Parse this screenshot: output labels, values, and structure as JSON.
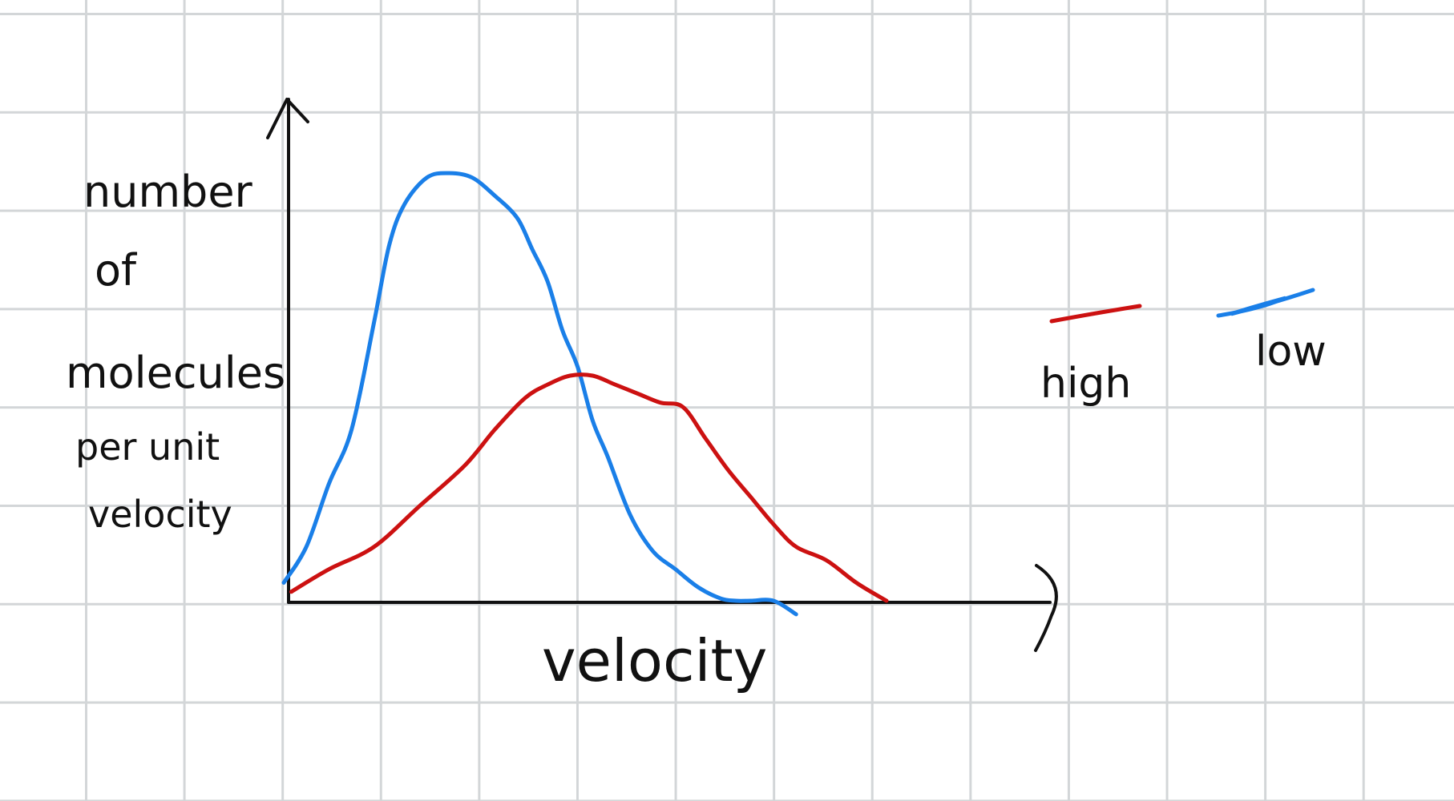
{
  "chart_data": {
    "type": "line",
    "title": "",
    "xlabel": "velocity",
    "ylabel": [
      "number",
      "of",
      "molecules",
      "per unit",
      "velocity"
    ],
    "grid": true,
    "legend_placement": "right",
    "x_range": [
      0,
      10
    ],
    "y_range": [
      0,
      10
    ],
    "series": [
      {
        "name": "low",
        "color": "#1a7fe8",
        "x": [
          0.0,
          0.3,
          0.6,
          0.9,
          1.2,
          1.4,
          1.6,
          1.9,
          2.2,
          2.5,
          2.8,
          3.1,
          3.3,
          3.5,
          3.7,
          3.9,
          4.1,
          4.3,
          4.6,
          4.9,
          5.2,
          5.5,
          5.8,
          6.0,
          6.2,
          6.5,
          6.8
        ],
        "y": [
          0.4,
          1.2,
          2.6,
          3.8,
          6.2,
          7.9,
          8.8,
          9.4,
          9.5,
          9.4,
          9.0,
          8.5,
          7.8,
          7.1,
          6.0,
          5.2,
          4.0,
          3.2,
          1.9,
          1.1,
          0.7,
          0.3,
          0.05,
          0.0,
          0.0,
          0.0,
          -0.3
        ]
      },
      {
        "name": "high",
        "color": "#cc1111",
        "x": [
          0.1,
          0.6,
          1.2,
          1.8,
          2.4,
          2.8,
          3.2,
          3.5,
          3.8,
          4.1,
          4.4,
          4.7,
          5.0,
          5.3,
          5.6,
          5.9,
          6.2,
          6.5,
          6.8,
          7.2,
          7.6,
          8.0
        ],
        "y": [
          0.2,
          0.7,
          1.2,
          2.1,
          3.0,
          3.8,
          4.5,
          4.8,
          5.0,
          5.0,
          4.8,
          4.6,
          4.4,
          4.3,
          3.6,
          2.9,
          2.3,
          1.7,
          1.2,
          0.9,
          0.4,
          0.0
        ]
      }
    ]
  },
  "legend": {
    "high_label": "high",
    "low_label": "low",
    "high_color": "#cc1111",
    "low_color": "#1a7fe8"
  },
  "axis_color": "#111111"
}
